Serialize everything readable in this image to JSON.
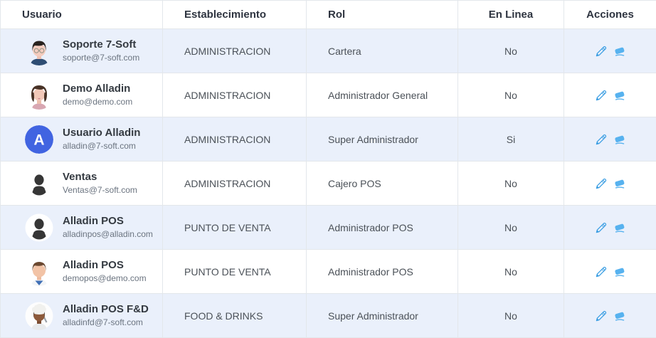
{
  "table": {
    "columns": [
      {
        "id": "usuario",
        "label": "Usuario"
      },
      {
        "id": "establecimiento",
        "label": "Establecimiento"
      },
      {
        "id": "rol",
        "label": "Rol"
      },
      {
        "id": "en_linea",
        "label": "En Linea"
      },
      {
        "id": "acciones",
        "label": "Acciones"
      }
    ],
    "rows": [
      {
        "name": "Soporte 7-Soft",
        "email": "soporte@7-soft.com",
        "avatar": "man-glasses-avatar",
        "avatar_text": "",
        "establecimiento": "ADMINISTRACION",
        "rol": "Cartera",
        "en_linea": "No"
      },
      {
        "name": "Demo Alladin",
        "email": "demo@demo.com",
        "avatar": "woman-avatar",
        "avatar_text": "",
        "establecimiento": "ADMINISTRACION",
        "rol": "Administrador General",
        "en_linea": "No"
      },
      {
        "name": "Usuario Alladin",
        "email": "alladin@7-soft.com",
        "avatar": "letter-a-avatar",
        "avatar_text": "A",
        "establecimiento": "ADMINISTRACION",
        "rol": "Super Administrador",
        "en_linea": "Si"
      },
      {
        "name": "Ventas",
        "email": "Ventas@7-soft.com",
        "avatar": "person-silhouette-avatar",
        "avatar_text": "",
        "establecimiento": "ADMINISTRACION",
        "rol": "Cajero POS",
        "en_linea": "No"
      },
      {
        "name": "Alladin POS",
        "email": "alladinpos@alladin.com",
        "avatar": "person-silhouette-avatar",
        "avatar_text": "",
        "establecimiento": "PUNTO DE VENTA",
        "rol": "Administrador POS",
        "en_linea": "No"
      },
      {
        "name": "Alladin POS",
        "email": "demopos@demo.com",
        "avatar": "man-avatar",
        "avatar_text": "",
        "establecimiento": "PUNTO DE VENTA",
        "rol": "Administrador POS",
        "en_linea": "No"
      },
      {
        "name": "Alladin POS F&D",
        "email": "alladinfd@7-soft.com",
        "avatar": "chef-avatar",
        "avatar_text": "",
        "establecimiento": "FOOD & DRINKS",
        "rol": "Super Administrador",
        "en_linea": "No"
      }
    ],
    "actions": [
      {
        "icon": "pencil-icon"
      },
      {
        "icon": "eraser-icon"
      }
    ]
  },
  "colors": {
    "row_alt_bg": "#eaf0fb",
    "border": "#e3e7eb",
    "action_blue": "#3d9fe3",
    "action_blue_light": "#57b2ef",
    "letter_avatar_blue": "#4164e1"
  }
}
